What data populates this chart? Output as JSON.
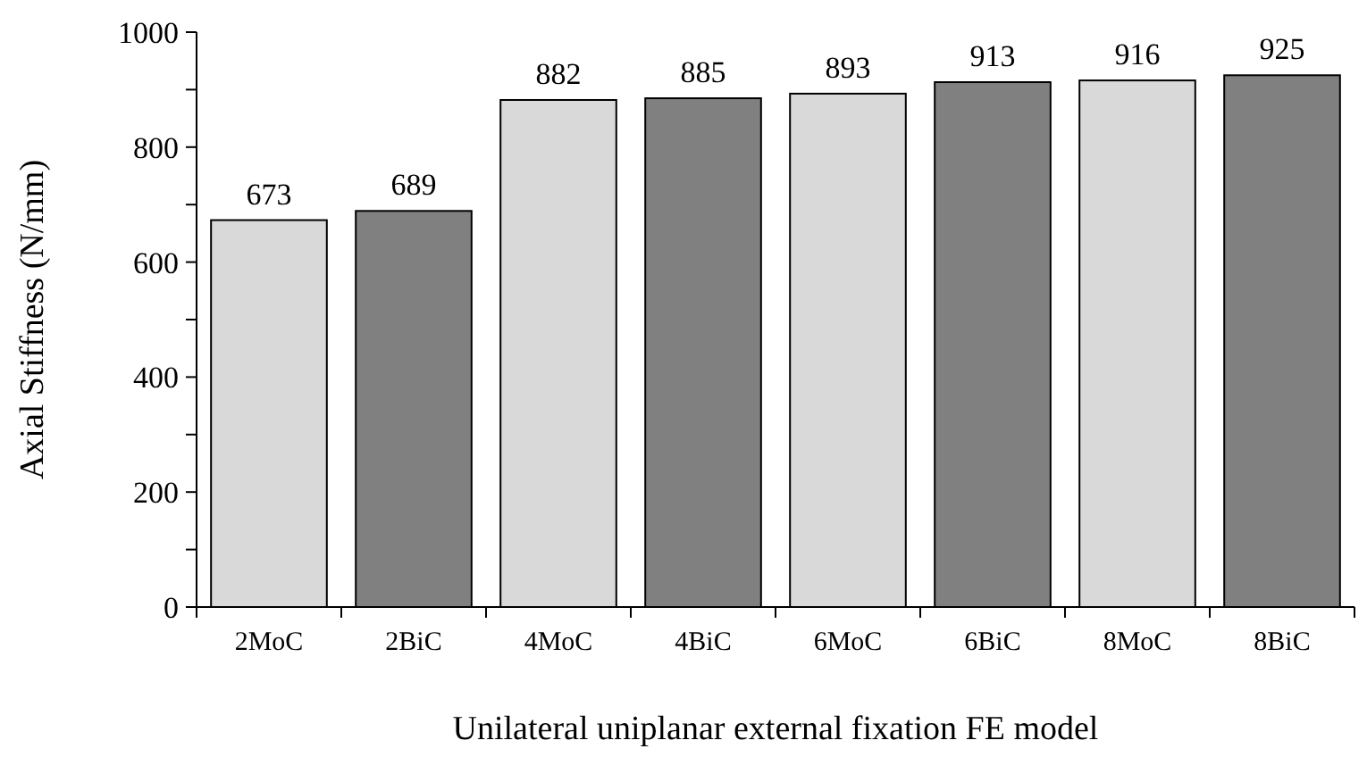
{
  "chart_data": {
    "type": "bar",
    "xlabel": "Unilateral uniplanar external fixation FE model",
    "ylabel": "Axial Stiffness (N/mm)",
    "categories": [
      "2MoC",
      "2BiC",
      "4MoC",
      "4BiC",
      "6MoC",
      "6BiC",
      "8MoC",
      "8BiC"
    ],
    "values": [
      673,
      689,
      882,
      885,
      893,
      913,
      916,
      925
    ],
    "colors": [
      "#d9d9d9",
      "#808080",
      "#d9d9d9",
      "#808080",
      "#d9d9d9",
      "#808080",
      "#d9d9d9",
      "#808080"
    ],
    "ylim": [
      0,
      1000
    ],
    "yticks": [
      0,
      {
        "value": 100,
        "label": null
      },
      200,
      {
        "value": 300,
        "label": null
      },
      400,
      {
        "value": 500,
        "label": null
      },
      600,
      {
        "value": 700,
        "label": null
      },
      800,
      {
        "value": 900,
        "label": null
      },
      1000
    ],
    "data_labels": true
  }
}
